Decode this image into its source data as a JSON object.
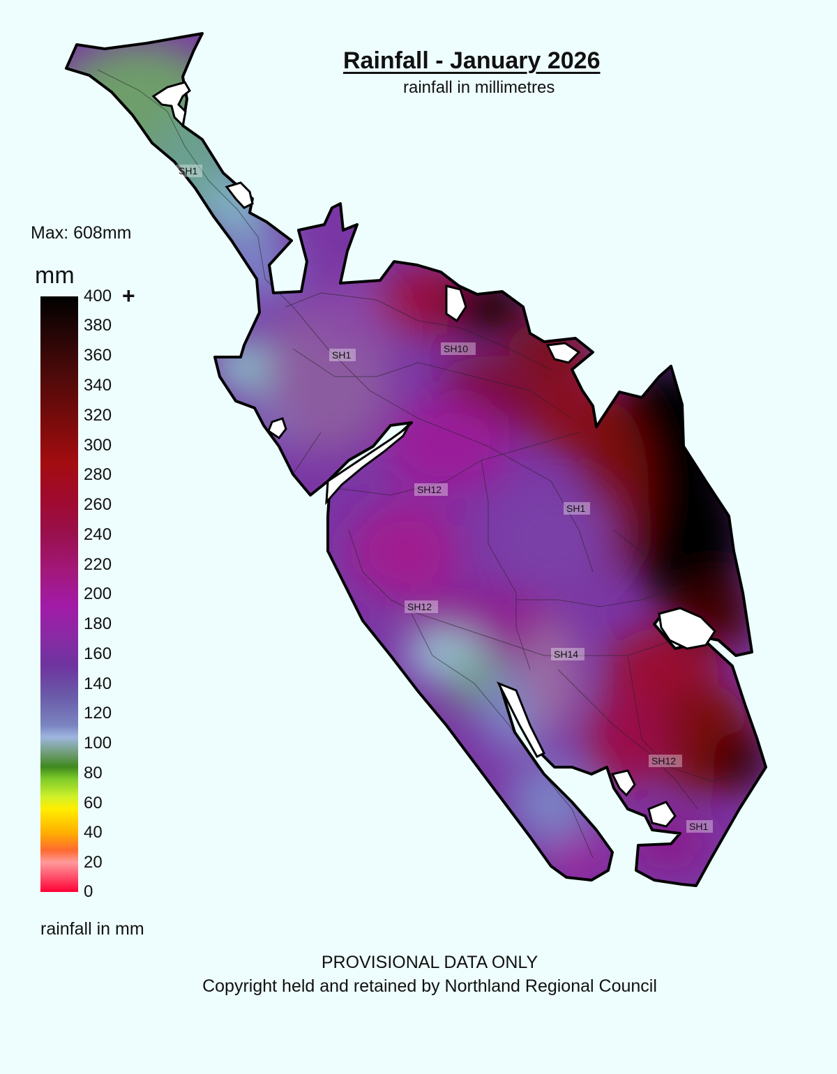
{
  "title": "Rainfall - January 2026",
  "subtitle": "rainfall in millimetres",
  "max_label": "Max: 608mm",
  "legend": {
    "unit": "mm",
    "plus": "+",
    "caption": "rainfall in mm",
    "ticks": [
      "400",
      "380",
      "360",
      "340",
      "320",
      "300",
      "280",
      "260",
      "240",
      "220",
      "200",
      "180",
      "160",
      "140",
      "120",
      "100",
      "80",
      "60",
      "40",
      "20",
      "0"
    ]
  },
  "roads": [
    "SH1",
    "SH1",
    "SH10",
    "SH12",
    "SH1",
    "SH12",
    "SH14",
    "SH12",
    "SH1"
  ],
  "footer": {
    "line1": "PROVISIONAL DATA ONLY",
    "line2": "Copyright held and retained by Northland Regional Council"
  },
  "colors": {
    "background": "#eefdfd",
    "max_rain": "#000000",
    "high_rain": "#8b0a0a",
    "mid_rain": "#8a2aa4",
    "low_rain": "#7a84c0",
    "lowest_rain": "#6a9a6a"
  }
}
